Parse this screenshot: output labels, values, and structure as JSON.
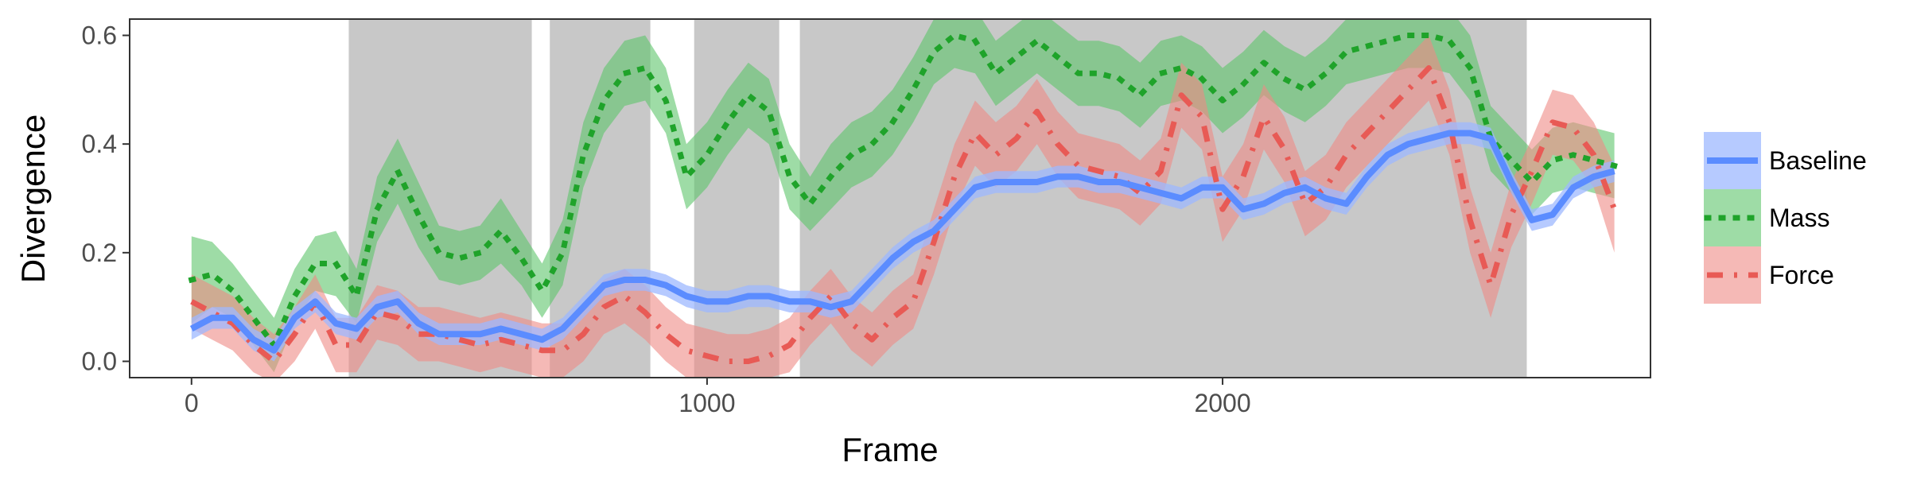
{
  "chart_data": {
    "type": "line",
    "xlabel": "Frame",
    "ylabel": "Divergence",
    "xlim": [
      -120,
      2830
    ],
    "ylim": [
      -0.03,
      0.63
    ],
    "xticks": [
      {
        "value": 0,
        "label": "0"
      },
      {
        "value": 1000,
        "label": "1000"
      },
      {
        "value": 2000,
        "label": "2000"
      }
    ],
    "yticks": [
      {
        "value": 0.0,
        "label": "0.0"
      },
      {
        "value": 0.2,
        "label": "0.2"
      },
      {
        "value": 0.4,
        "label": "0.4"
      },
      {
        "value": 0.6,
        "label": "0.6"
      }
    ],
    "grid": false,
    "legend_position": "right",
    "shaded_regions": [
      {
        "x": [
          305,
          660
        ]
      },
      {
        "x": [
          695,
          890
        ]
      },
      {
        "x": [
          975,
          1140
        ]
      },
      {
        "x": [
          1180,
          2590
        ]
      }
    ],
    "colors": {
      "shade": "#c8c8c8",
      "Baseline": "#5b8cff",
      "Baseline_band": "#9db8ff",
      "Mass": "#1fa32a",
      "Mass_band": "#5ec46a",
      "Force": "#e85a55",
      "Force_band": "#ee8a86"
    },
    "x": [
      0,
      40,
      80,
      120,
      160,
      200,
      240,
      280,
      320,
      360,
      400,
      440,
      480,
      520,
      560,
      600,
      640,
      680,
      720,
      760,
      800,
      840,
      880,
      920,
      960,
      1000,
      1040,
      1080,
      1120,
      1160,
      1200,
      1240,
      1280,
      1320,
      1360,
      1400,
      1440,
      1480,
      1520,
      1560,
      1600,
      1640,
      1680,
      1720,
      1760,
      1800,
      1840,
      1880,
      1920,
      1960,
      2000,
      2040,
      2080,
      2120,
      2160,
      2200,
      2240,
      2280,
      2320,
      2360,
      2400,
      2440,
      2480,
      2520,
      2560,
      2600,
      2640,
      2680,
      2720,
      2760
    ],
    "series": [
      {
        "name": "Baseline",
        "style": "solid",
        "values": [
          0.06,
          0.08,
          0.08,
          0.04,
          0.02,
          0.08,
          0.11,
          0.07,
          0.06,
          0.1,
          0.11,
          0.07,
          0.05,
          0.05,
          0.05,
          0.06,
          0.05,
          0.04,
          0.06,
          0.1,
          0.14,
          0.15,
          0.15,
          0.14,
          0.12,
          0.11,
          0.11,
          0.12,
          0.12,
          0.11,
          0.11,
          0.1,
          0.11,
          0.15,
          0.19,
          0.22,
          0.24,
          0.28,
          0.32,
          0.33,
          0.33,
          0.33,
          0.34,
          0.34,
          0.33,
          0.33,
          0.32,
          0.31,
          0.3,
          0.32,
          0.32,
          0.28,
          0.29,
          0.31,
          0.32,
          0.3,
          0.29,
          0.34,
          0.38,
          0.4,
          0.41,
          0.42,
          0.42,
          0.41,
          0.33,
          0.26,
          0.27,
          0.32,
          0.34,
          0.35
        ],
        "lower": [
          0.04,
          0.06,
          0.06,
          0.02,
          0.0,
          0.06,
          0.09,
          0.05,
          0.04,
          0.08,
          0.09,
          0.05,
          0.03,
          0.03,
          0.03,
          0.04,
          0.03,
          0.02,
          0.04,
          0.08,
          0.12,
          0.13,
          0.13,
          0.12,
          0.1,
          0.09,
          0.09,
          0.1,
          0.1,
          0.09,
          0.09,
          0.08,
          0.09,
          0.13,
          0.17,
          0.2,
          0.22,
          0.26,
          0.3,
          0.31,
          0.31,
          0.31,
          0.32,
          0.32,
          0.31,
          0.31,
          0.3,
          0.29,
          0.28,
          0.3,
          0.3,
          0.26,
          0.27,
          0.29,
          0.3,
          0.28,
          0.27,
          0.32,
          0.36,
          0.38,
          0.39,
          0.4,
          0.4,
          0.39,
          0.31,
          0.24,
          0.25,
          0.3,
          0.32,
          0.33
        ],
        "upper": [
          0.08,
          0.1,
          0.1,
          0.06,
          0.04,
          0.1,
          0.13,
          0.09,
          0.08,
          0.12,
          0.13,
          0.09,
          0.07,
          0.07,
          0.07,
          0.08,
          0.07,
          0.06,
          0.08,
          0.12,
          0.16,
          0.17,
          0.17,
          0.16,
          0.14,
          0.13,
          0.13,
          0.14,
          0.14,
          0.13,
          0.13,
          0.12,
          0.13,
          0.17,
          0.21,
          0.24,
          0.26,
          0.3,
          0.34,
          0.35,
          0.35,
          0.35,
          0.36,
          0.36,
          0.35,
          0.35,
          0.34,
          0.33,
          0.32,
          0.34,
          0.34,
          0.3,
          0.31,
          0.33,
          0.34,
          0.32,
          0.31,
          0.36,
          0.4,
          0.42,
          0.43,
          0.44,
          0.44,
          0.43,
          0.35,
          0.28,
          0.29,
          0.34,
          0.36,
          0.37
        ]
      },
      {
        "name": "Mass",
        "style": "dotted",
        "values": [
          0.15,
          0.16,
          0.13,
          0.08,
          0.03,
          0.12,
          0.18,
          0.18,
          0.12,
          0.28,
          0.35,
          0.27,
          0.2,
          0.19,
          0.2,
          0.24,
          0.19,
          0.13,
          0.2,
          0.38,
          0.48,
          0.53,
          0.54,
          0.48,
          0.34,
          0.38,
          0.44,
          0.49,
          0.46,
          0.34,
          0.29,
          0.34,
          0.38,
          0.4,
          0.44,
          0.5,
          0.57,
          0.6,
          0.59,
          0.53,
          0.56,
          0.59,
          0.56,
          0.53,
          0.53,
          0.52,
          0.49,
          0.53,
          0.54,
          0.52,
          0.48,
          0.51,
          0.55,
          0.52,
          0.5,
          0.53,
          0.57,
          0.58,
          0.59,
          0.6,
          0.6,
          0.59,
          0.54,
          0.41,
          0.37,
          0.33,
          0.37,
          0.38,
          0.37,
          0.36
        ],
        "lower": [
          0.07,
          0.1,
          0.08,
          0.03,
          -0.02,
          0.07,
          0.13,
          0.12,
          0.07,
          0.22,
          0.29,
          0.21,
          0.15,
          0.14,
          0.15,
          0.18,
          0.14,
          0.08,
          0.14,
          0.32,
          0.42,
          0.47,
          0.48,
          0.42,
          0.28,
          0.32,
          0.38,
          0.43,
          0.4,
          0.28,
          0.24,
          0.28,
          0.32,
          0.34,
          0.38,
          0.44,
          0.51,
          0.54,
          0.53,
          0.47,
          0.5,
          0.53,
          0.5,
          0.47,
          0.47,
          0.46,
          0.43,
          0.47,
          0.48,
          0.46,
          0.42,
          0.45,
          0.49,
          0.46,
          0.44,
          0.47,
          0.51,
          0.52,
          0.53,
          0.54,
          0.54,
          0.53,
          0.48,
          0.35,
          0.31,
          0.27,
          0.31,
          0.32,
          0.31,
          0.3
        ],
        "upper": [
          0.23,
          0.22,
          0.18,
          0.13,
          0.08,
          0.17,
          0.23,
          0.24,
          0.17,
          0.34,
          0.41,
          0.33,
          0.25,
          0.24,
          0.25,
          0.3,
          0.24,
          0.18,
          0.26,
          0.44,
          0.54,
          0.59,
          0.6,
          0.54,
          0.4,
          0.44,
          0.5,
          0.55,
          0.52,
          0.4,
          0.34,
          0.4,
          0.44,
          0.46,
          0.5,
          0.56,
          0.63,
          0.66,
          0.65,
          0.59,
          0.62,
          0.65,
          0.62,
          0.59,
          0.59,
          0.58,
          0.55,
          0.59,
          0.6,
          0.58,
          0.54,
          0.57,
          0.61,
          0.58,
          0.56,
          0.59,
          0.63,
          0.64,
          0.65,
          0.66,
          0.66,
          0.65,
          0.6,
          0.47,
          0.43,
          0.39,
          0.43,
          0.44,
          0.43,
          0.42
        ]
      },
      {
        "name": "Force",
        "style": "dashdot",
        "values": [
          0.11,
          0.09,
          0.07,
          0.03,
          0.0,
          0.05,
          0.11,
          0.03,
          0.03,
          0.09,
          0.08,
          0.05,
          0.05,
          0.04,
          0.03,
          0.04,
          0.03,
          0.02,
          0.02,
          0.05,
          0.1,
          0.12,
          0.09,
          0.05,
          0.02,
          0.01,
          0.0,
          0.0,
          0.01,
          0.03,
          0.08,
          0.12,
          0.07,
          0.04,
          0.08,
          0.11,
          0.22,
          0.34,
          0.42,
          0.38,
          0.41,
          0.46,
          0.4,
          0.36,
          0.35,
          0.34,
          0.31,
          0.35,
          0.49,
          0.45,
          0.28,
          0.34,
          0.45,
          0.39,
          0.29,
          0.32,
          0.38,
          0.42,
          0.46,
          0.5,
          0.54,
          0.44,
          0.26,
          0.14,
          0.27,
          0.35,
          0.44,
          0.43,
          0.38,
          0.28
        ],
        "lower": [
          0.06,
          0.04,
          0.02,
          -0.02,
          -0.04,
          0.0,
          0.06,
          -0.02,
          -0.02,
          0.04,
          0.03,
          0.0,
          0.0,
          -0.01,
          -0.02,
          -0.01,
          -0.02,
          -0.03,
          -0.03,
          0.0,
          0.05,
          0.07,
          0.04,
          0.0,
          -0.03,
          -0.03,
          -0.04,
          -0.04,
          -0.03,
          -0.02,
          0.03,
          0.07,
          0.02,
          -0.01,
          0.03,
          0.06,
          0.16,
          0.28,
          0.36,
          0.32,
          0.35,
          0.4,
          0.34,
          0.3,
          0.29,
          0.28,
          0.25,
          0.29,
          0.43,
          0.39,
          0.22,
          0.28,
          0.39,
          0.33,
          0.23,
          0.26,
          0.32,
          0.36,
          0.4,
          0.44,
          0.48,
          0.38,
          0.2,
          0.08,
          0.21,
          0.29,
          0.38,
          0.37,
          0.32,
          0.2
        ],
        "upper": [
          0.16,
          0.14,
          0.12,
          0.08,
          0.05,
          0.1,
          0.16,
          0.08,
          0.08,
          0.14,
          0.13,
          0.1,
          0.1,
          0.09,
          0.08,
          0.09,
          0.08,
          0.07,
          0.07,
          0.1,
          0.15,
          0.17,
          0.14,
          0.1,
          0.07,
          0.06,
          0.05,
          0.05,
          0.06,
          0.08,
          0.13,
          0.17,
          0.12,
          0.09,
          0.13,
          0.16,
          0.28,
          0.4,
          0.48,
          0.44,
          0.47,
          0.52,
          0.46,
          0.42,
          0.41,
          0.4,
          0.37,
          0.41,
          0.55,
          0.51,
          0.34,
          0.4,
          0.51,
          0.45,
          0.35,
          0.38,
          0.44,
          0.48,
          0.52,
          0.56,
          0.6,
          0.5,
          0.32,
          0.2,
          0.33,
          0.41,
          0.5,
          0.49,
          0.44,
          0.36
        ]
      }
    ]
  }
}
